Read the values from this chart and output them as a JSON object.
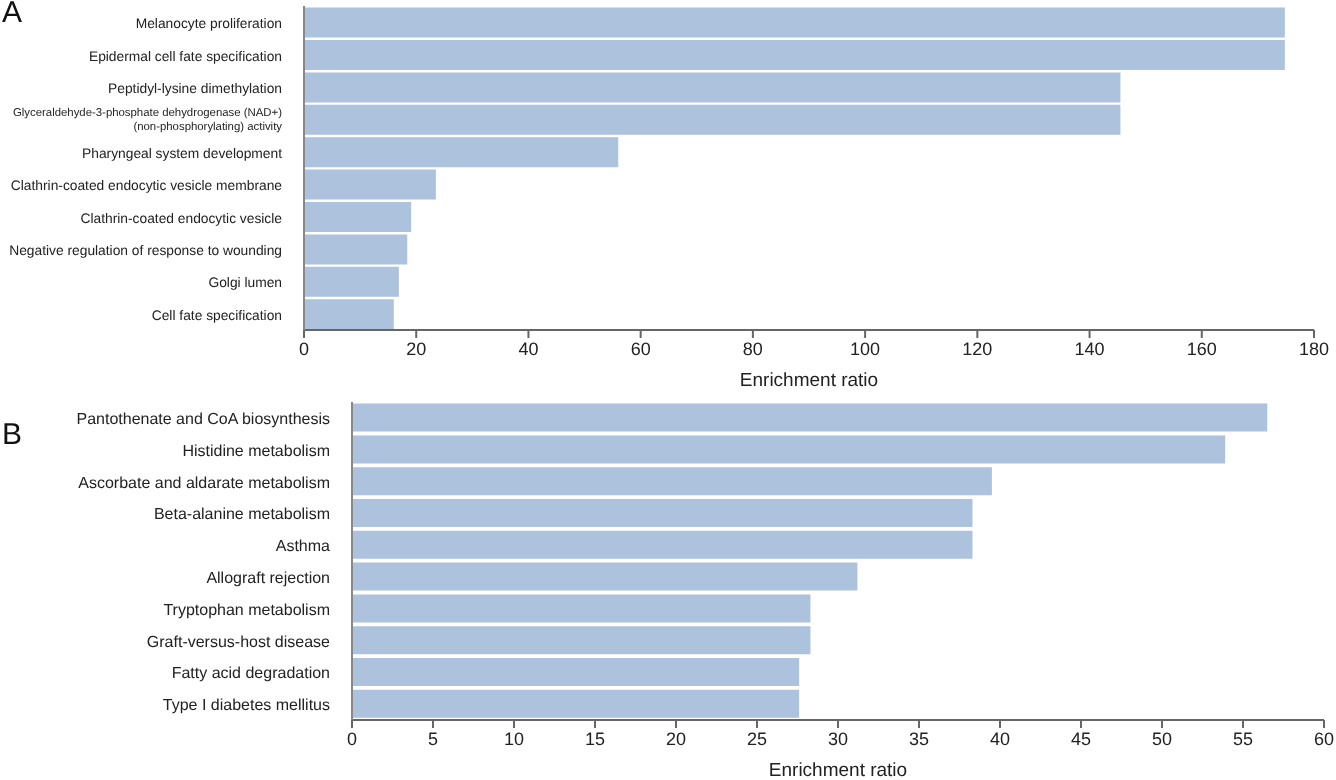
{
  "chart_data": [
    {
      "type": "bar",
      "orientation": "horizontal",
      "title": "A",
      "xlabel": "Enrichment ratio",
      "categories": [
        "Melanocyte proliferation",
        "Epidermal cell fate specification",
        "Peptidyl-lysine dimethylation",
        "Glyceraldehyde-3-phosphate dehydrogenase (NAD+) (non-phosphorylating) activity",
        "Pharyngeal system development",
        "Clathrin-coated endocytic vesicle membrane",
        "Clathrin-coated endocytic vesicle",
        "Negative regulation of response to wounding",
        "Golgi lumen",
        "Cell fate specification"
      ],
      "values": [
        174.8,
        174.8,
        145.5,
        145.5,
        56,
        23.5,
        19.1,
        18.4,
        16.9,
        16
      ],
      "color": "#adc2dc",
      "xlim": [
        0,
        180
      ],
      "xticks": [
        0,
        20,
        40,
        60,
        80,
        100,
        120,
        140,
        160,
        180
      ],
      "grid": false,
      "legend": false
    },
    {
      "type": "bar",
      "orientation": "horizontal",
      "title": "B",
      "xlabel": "Enrichment ratio",
      "categories": [
        "Pantothenate and CoA biosynthesis",
        "Histidine metabolism",
        "Ascorbate and aldarate metabolism",
        "Beta-alanine metabolism",
        "Asthma",
        "Allograft rejection",
        "Tryptophan metabolism",
        "Graft-versus-host disease",
        "Fatty acid degradation",
        "Type I diabetes mellitus"
      ],
      "values": [
        56.5,
        53.9,
        39.5,
        38.3,
        38.3,
        31.2,
        28.3,
        28.3,
        27.6,
        27.6
      ],
      "color": "#adc2dc",
      "xlim": [
        0,
        60
      ],
      "xticks": [
        0,
        5,
        10,
        15,
        20,
        25,
        30,
        35,
        40,
        45,
        50,
        55,
        60
      ],
      "grid": false,
      "legend": false
    }
  ]
}
